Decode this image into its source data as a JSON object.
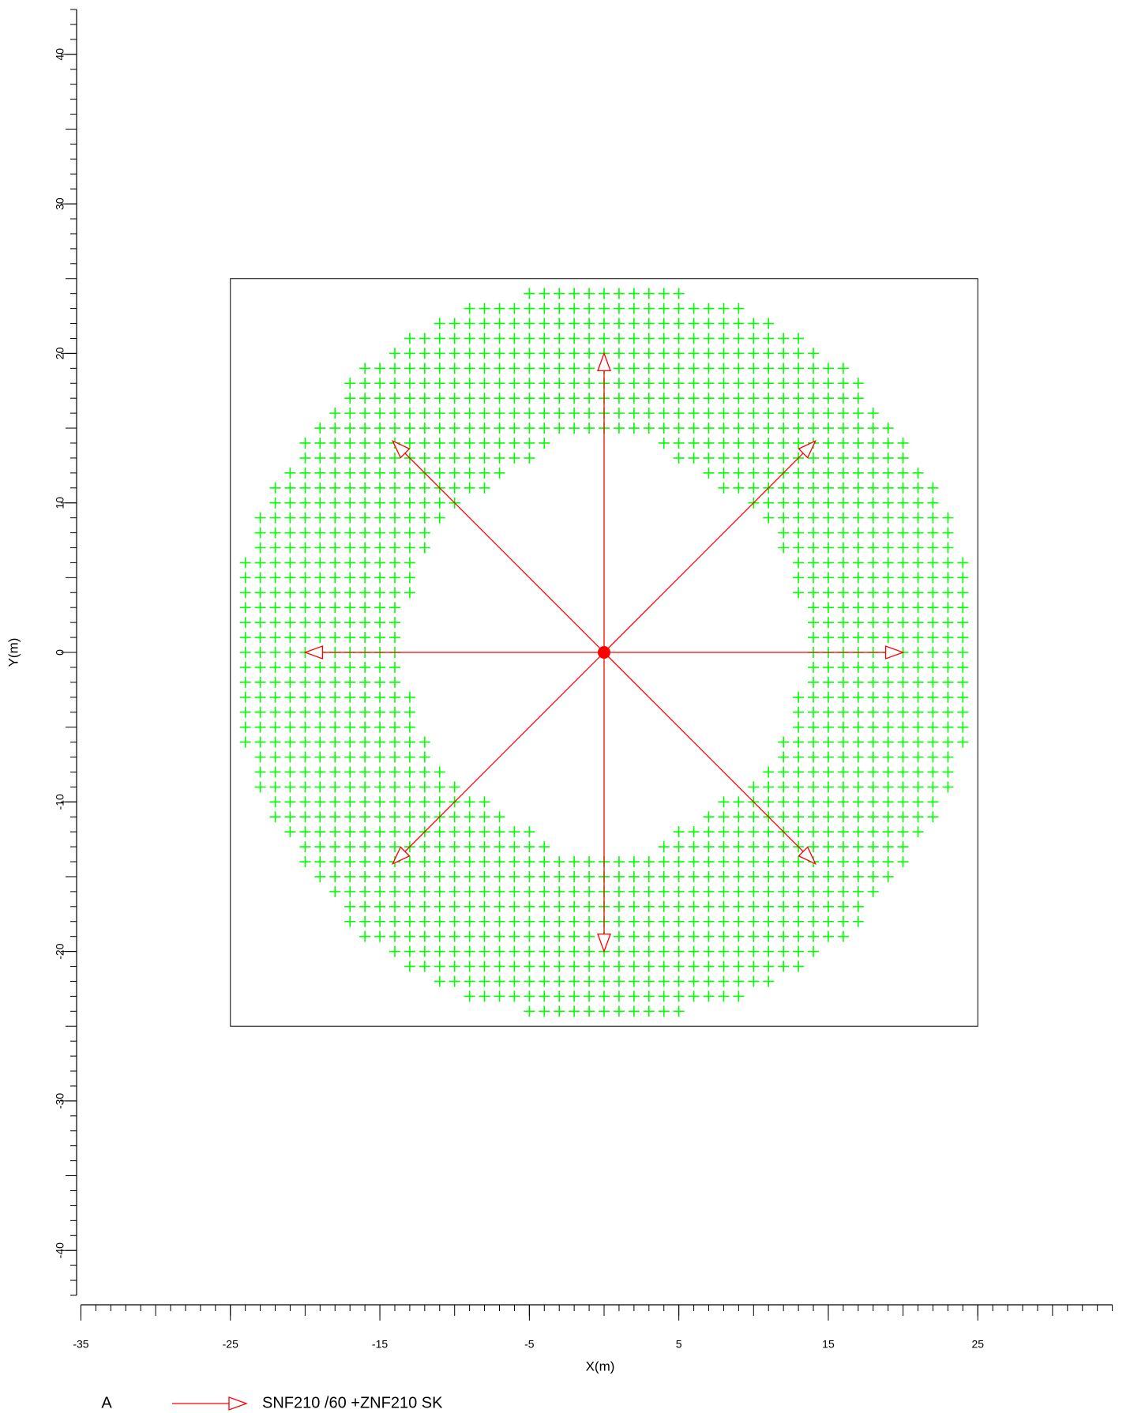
{
  "chart_data": {
    "type": "measurement-grid",
    "xlabel": "X(m)",
    "ylabel": "Y(m)",
    "xlim": [
      -35,
      34
    ],
    "ylim": [
      -43,
      43
    ],
    "xticks": [
      -35,
      -25,
      -15,
      -5,
      5,
      15,
      25
    ],
    "yticks": [
      -40,
      -30,
      -20,
      -10,
      0,
      10,
      20,
      30,
      40
    ],
    "minor_tick_step": 1,
    "major_tick_step": 5,
    "box": {
      "x": [
        -25,
        25
      ],
      "y": [
        -25,
        25
      ]
    },
    "grid_color": "#00ff00",
    "grid_step": 1,
    "grid_rows": [
      {
        "y": 24,
        "x": [
          [
            -5,
            5
          ]
        ]
      },
      {
        "y": 23,
        "x": [
          [
            -9,
            9
          ]
        ]
      },
      {
        "y": 22,
        "x": [
          [
            -11,
            11
          ]
        ]
      },
      {
        "y": 21,
        "x": [
          [
            -13,
            13
          ]
        ]
      },
      {
        "y": 20,
        "x": [
          [
            -14,
            14
          ]
        ]
      },
      {
        "y": 19,
        "x": [
          [
            -16,
            16
          ]
        ]
      },
      {
        "y": 18,
        "x": [
          [
            -17,
            17
          ]
        ]
      },
      {
        "y": 17,
        "x": [
          [
            -17,
            17
          ]
        ]
      },
      {
        "y": 16,
        "x": [
          [
            -18,
            18
          ]
        ]
      },
      {
        "y": 15,
        "x": [
          [
            -19,
            19
          ]
        ]
      },
      {
        "y": 14,
        "x": [
          [
            -20,
            -4
          ],
          [
            4,
            20
          ]
        ]
      },
      {
        "y": 13,
        "x": [
          [
            -20,
            -5
          ],
          [
            5,
            20
          ]
        ]
      },
      {
        "y": 12,
        "x": [
          [
            -21,
            -7
          ],
          [
            7,
            21
          ]
        ]
      },
      {
        "y": 11,
        "x": [
          [
            -22,
            -8
          ],
          [
            8,
            22
          ]
        ]
      },
      {
        "y": 10,
        "x": [
          [
            -22,
            -10
          ],
          [
            10,
            22
          ]
        ]
      },
      {
        "y": 9,
        "x": [
          [
            -23,
            -11
          ],
          [
            11,
            23
          ]
        ]
      },
      {
        "y": 8,
        "x": [
          [
            -23,
            -12
          ],
          [
            12,
            23
          ]
        ]
      },
      {
        "y": 7,
        "x": [
          [
            -23,
            -12
          ],
          [
            12,
            23
          ]
        ]
      },
      {
        "y": 6,
        "x": [
          [
            -24,
            -13
          ],
          [
            13,
            24
          ]
        ]
      },
      {
        "y": 5,
        "x": [
          [
            -24,
            -13
          ],
          [
            13,
            24
          ]
        ]
      },
      {
        "y": 4,
        "x": [
          [
            -24,
            -13
          ],
          [
            13,
            24
          ]
        ]
      },
      {
        "y": 3,
        "x": [
          [
            -24,
            -14
          ],
          [
            14,
            24
          ]
        ]
      },
      {
        "y": 2,
        "x": [
          [
            -24,
            -14
          ],
          [
            14,
            24
          ]
        ]
      },
      {
        "y": 1,
        "x": [
          [
            -24,
            -14
          ],
          [
            14,
            24
          ]
        ]
      },
      {
        "y": 0,
        "x": [
          [
            -24,
            -14
          ],
          [
            14,
            24
          ]
        ]
      },
      {
        "y": -1,
        "x": [
          [
            -24,
            -14
          ],
          [
            14,
            24
          ]
        ]
      },
      {
        "y": -2,
        "x": [
          [
            -24,
            -14
          ],
          [
            14,
            24
          ]
        ]
      },
      {
        "y": -3,
        "x": [
          [
            -24,
            -13
          ],
          [
            13,
            24
          ]
        ]
      },
      {
        "y": -4,
        "x": [
          [
            -24,
            -13
          ],
          [
            13,
            24
          ]
        ]
      },
      {
        "y": -5,
        "x": [
          [
            -24,
            -13
          ],
          [
            13,
            24
          ]
        ]
      },
      {
        "y": -6,
        "x": [
          [
            -24,
            -12
          ],
          [
            12,
            24
          ]
        ]
      },
      {
        "y": -7,
        "x": [
          [
            -23,
            -12
          ],
          [
            12,
            23
          ]
        ]
      },
      {
        "y": -8,
        "x": [
          [
            -23,
            -11
          ],
          [
            11,
            23
          ]
        ]
      },
      {
        "y": -9,
        "x": [
          [
            -23,
            -10
          ],
          [
            10,
            23
          ]
        ]
      },
      {
        "y": -10,
        "x": [
          [
            -22,
            -8
          ],
          [
            8,
            22
          ]
        ]
      },
      {
        "y": -11,
        "x": [
          [
            -22,
            -7
          ],
          [
            7,
            22
          ]
        ]
      },
      {
        "y": -12,
        "x": [
          [
            -21,
            -5
          ],
          [
            5,
            21
          ]
        ]
      },
      {
        "y": -13,
        "x": [
          [
            -20,
            -4
          ],
          [
            4,
            20
          ]
        ]
      },
      {
        "y": -14,
        "x": [
          [
            -20,
            20
          ]
        ]
      },
      {
        "y": -15,
        "x": [
          [
            -19,
            19
          ]
        ]
      },
      {
        "y": -16,
        "x": [
          [
            -18,
            18
          ]
        ]
      },
      {
        "y": -17,
        "x": [
          [
            -17,
            17
          ]
        ]
      },
      {
        "y": -18,
        "x": [
          [
            -17,
            17
          ]
        ]
      },
      {
        "y": -19,
        "x": [
          [
            -16,
            16
          ]
        ]
      },
      {
        "y": -20,
        "x": [
          [
            -14,
            14
          ]
        ]
      },
      {
        "y": -21,
        "x": [
          [
            -13,
            13
          ]
        ]
      },
      {
        "y": -22,
        "x": [
          [
            -11,
            11
          ]
        ]
      },
      {
        "y": -23,
        "x": [
          [
            -9,
            9
          ]
        ]
      },
      {
        "y": -24,
        "x": [
          [
            -5,
            5
          ]
        ]
      }
    ],
    "source": {
      "x": 0,
      "y": 0,
      "color": "#ff0000"
    },
    "arrow_color": "#ff0000",
    "arrows": [
      {
        "x": 20,
        "y": 0
      },
      {
        "x": 14.14,
        "y": 14.14
      },
      {
        "x": 0,
        "y": 20
      },
      {
        "x": -14.14,
        "y": 14.14
      },
      {
        "x": -20,
        "y": 0
      },
      {
        "x": -14.14,
        "y": -14.14
      },
      {
        "x": 0,
        "y": -20
      },
      {
        "x": 14.14,
        "y": -14.14
      }
    ],
    "legend": {
      "key": "A",
      "label": "SNF210 /60 +ZNF210 SK"
    }
  }
}
